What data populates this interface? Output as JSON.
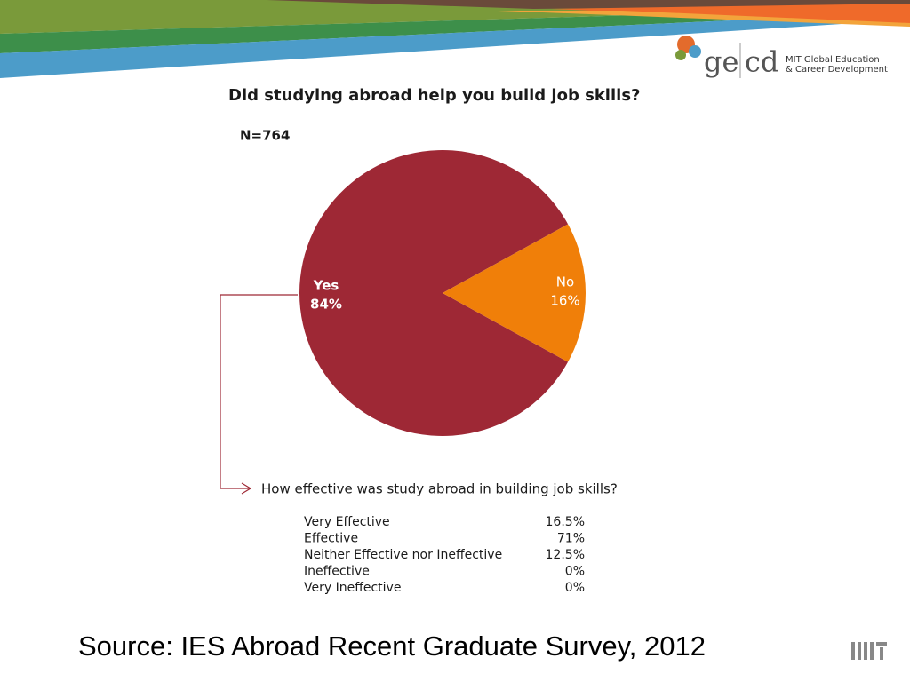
{
  "logo": {
    "left": "ge",
    "right": "cd",
    "line1": "MIT Global Education",
    "line2": "& Career Development"
  },
  "chart_data": {
    "type": "pie",
    "title": "Did studying abroad help you build job skills?",
    "subtitle": "N=764",
    "categories": [
      "Yes",
      "No"
    ],
    "values": [
      84,
      16
    ],
    "value_labels": [
      "84%",
      "16%"
    ],
    "colors": [
      "#9e2835",
      "#f07f09"
    ]
  },
  "followup": {
    "question": "How effective was study abroad in building job skills?",
    "rows": [
      [
        "Very Effective",
        "16.5%"
      ],
      [
        "Effective",
        "71%"
      ],
      [
        "Neither Effective nor Ineffective",
        "12.5%"
      ],
      [
        "Ineffective",
        "0%"
      ],
      [
        "Very Ineffective",
        "0%"
      ]
    ]
  },
  "source": "Source: IES Abroad Recent Graduate Survey, 2012"
}
